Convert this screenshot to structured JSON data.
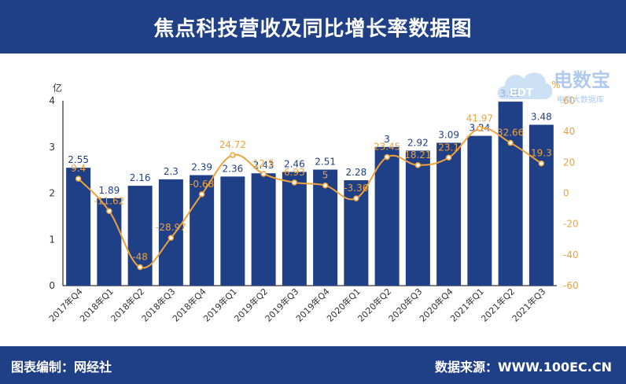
{
  "header": {
    "title": "焦点科技营收及同比增长率数据图"
  },
  "footer": {
    "editor": "图表编制：网经社",
    "source": "数据来源：WWW.100EC.CN"
  },
  "watermark": {
    "text": "电数宝",
    "sub": "电商大数据库",
    "logo": "EDT"
  },
  "colors": {
    "header_bg": "#1f3f86",
    "bar": "#1f3f86",
    "line": "#f0a23a",
    "bar_label": "#1f3f86",
    "line_label": "#f0a23a"
  },
  "chart_data": {
    "type": "bar",
    "categories": [
      "2017年Q4",
      "2018年Q1",
      "2018年Q2",
      "2018年Q3",
      "2018年Q4",
      "2019年Q1",
      "2019年Q2",
      "2019年Q3",
      "2019年Q4",
      "2020年Q1",
      "2020年Q2",
      "2020年Q3",
      "2020年Q4",
      "2021年Q1",
      "2021年Q2",
      "2021年Q3"
    ],
    "series": [
      {
        "values": [
          2.55,
          1.89,
          2.16,
          2.3,
          2.39,
          2.36,
          2.43,
          2.46,
          2.51,
          2.28,
          3,
          2.92,
          3.09,
          3.24,
          3.98,
          3.48
        ]
      },
      {
        "type": "line",
        "axis": "right",
        "values": [
          9.4,
          -11.62,
          -48,
          -28.97,
          -0.68,
          24.72,
          12.5,
          6.93,
          5,
          -3.36,
          23.45,
          18.21,
          23.1,
          41.97,
          32.66,
          19.3
        ],
        "labels": [
          "9.4",
          "-11.62",
          "-48",
          "-28.97",
          "-0.68",
          "24.72",
          "12.5",
          "6.93",
          "5",
          "-3.36",
          "23.45",
          "18.21",
          "23.1",
          "41.97",
          "32.66",
          "19.3"
        ]
      }
    ],
    "y_left": {
      "unit": "亿",
      "ticks": [
        "0",
        "1",
        "2",
        "3",
        "4"
      ],
      "range": [
        0,
        4
      ]
    },
    "y_right": {
      "unit": "%",
      "ticks": [
        "-60",
        "-40",
        "-20",
        "0",
        "20",
        "40",
        "60"
      ],
      "range": [
        -60,
        60
      ]
    },
    "grid": false
  }
}
